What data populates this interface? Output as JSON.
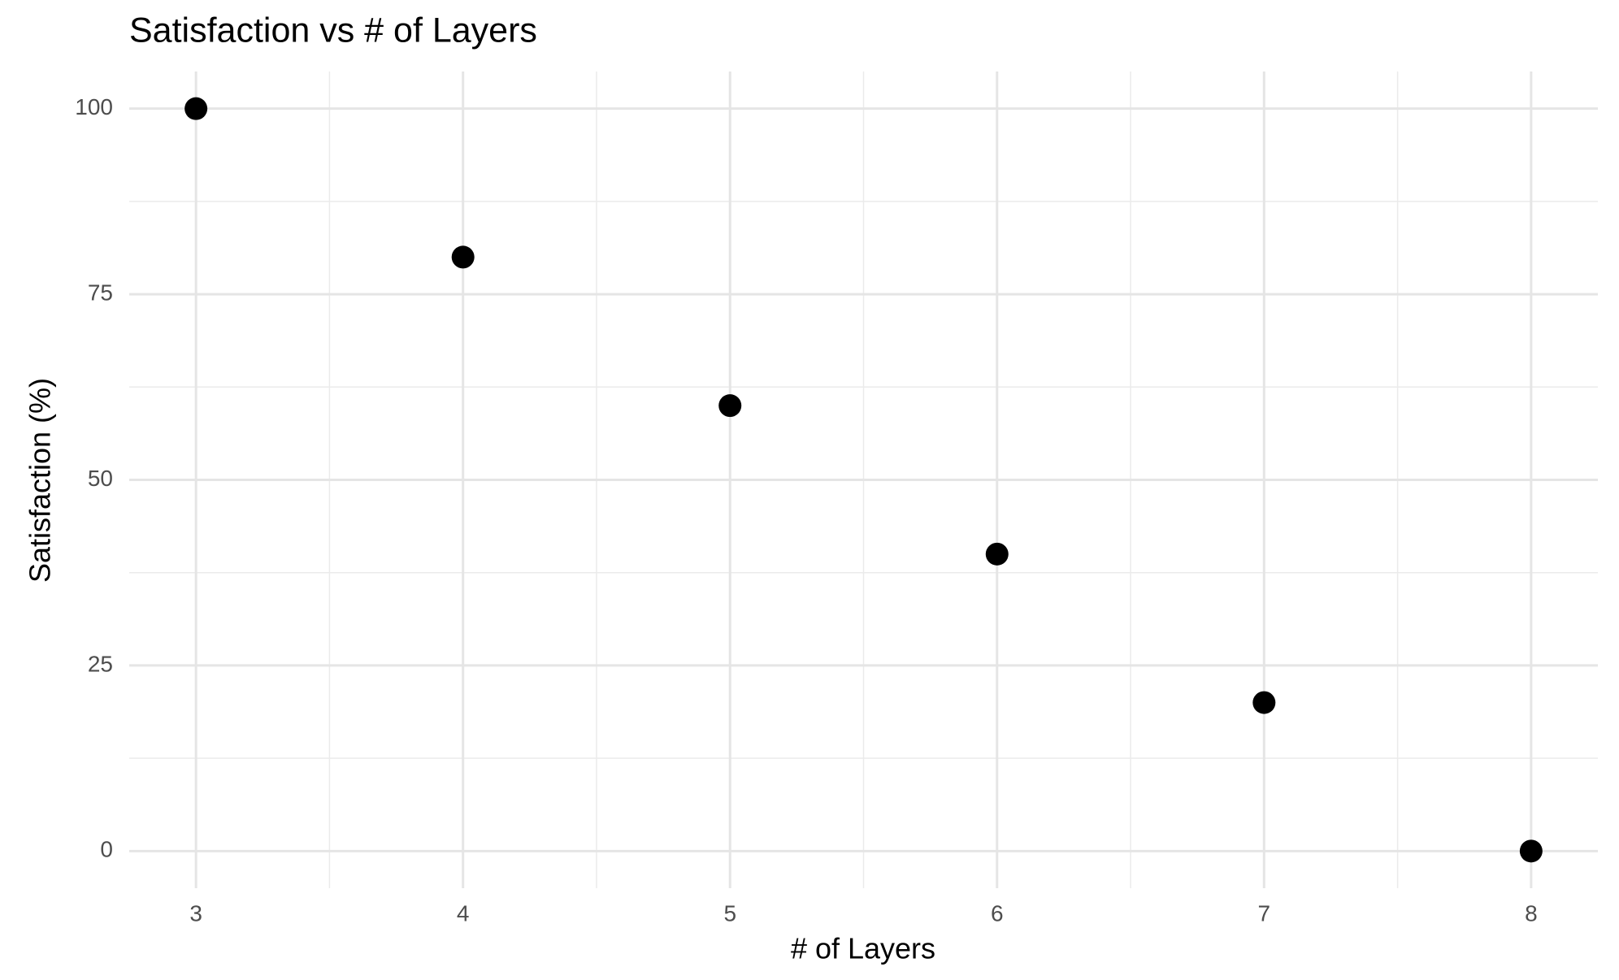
{
  "chart_data": {
    "type": "scatter",
    "title": "Satisfaction vs # of Layers",
    "x_label": "# of Layers",
    "y_label": "Satisfaction (%)",
    "x": [
      3,
      4,
      5,
      6,
      7,
      8
    ],
    "values": [
      100,
      80,
      60,
      40,
      20,
      0
    ],
    "color": "#000000",
    "xlim": [
      2.75,
      8.25
    ],
    "xticks": [
      3,
      4,
      5,
      6,
      7,
      8
    ],
    "ylim": [
      -5,
      105
    ],
    "yticks": [
      0,
      25,
      50,
      75,
      100
    ],
    "grid": true,
    "minor_grid": true
  }
}
